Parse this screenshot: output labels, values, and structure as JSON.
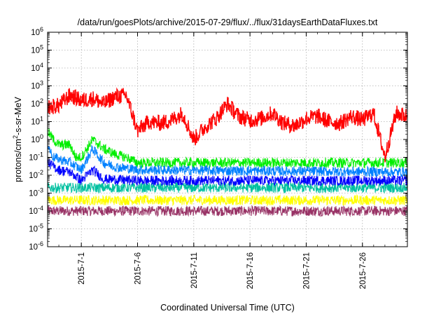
{
  "chart_data": {
    "type": "line",
    "title": "/data/run/goesPlots/archive/2015-07-29/flux/../flux/31daysEarthDataFluxes.txt",
    "xlabel": "Coordinated Universal Time (UTC)",
    "ylabel": {
      "base": "protons/cm",
      "sup": "2",
      "rest": "-s-sr-MeV"
    },
    "yscale": "log",
    "ylim": [
      1e-06,
      1000000.0
    ],
    "xlim": [
      "2015-06-28",
      "2015-07-29 23:59"
    ],
    "grid": true,
    "legend": "none",
    "x_ticks": [
      "2015-7-1",
      "2015-7-6",
      "2015-7-11",
      "2015-7-16",
      "2015-7-21",
      "2015-7-26"
    ],
    "y_ticks": [
      {
        "base": "10",
        "exp": "-6"
      },
      {
        "base": "10",
        "exp": "-5"
      },
      {
        "base": "10",
        "exp": "-4"
      },
      {
        "base": "10",
        "exp": "-3"
      },
      {
        "base": "10",
        "exp": "-2"
      },
      {
        "base": "10",
        "exp": "-1"
      },
      {
        "base": "10",
        "exp": "0"
      },
      {
        "base": "10",
        "exp": "1"
      },
      {
        "base": "10",
        "exp": "2"
      },
      {
        "base": "10",
        "exp": "3"
      },
      {
        "base": "10",
        "exp": "4"
      },
      {
        "base": "10",
        "exp": "5"
      },
      {
        "base": "10",
        "exp": "6"
      }
    ],
    "series": [
      {
        "color": "#ff0000",
        "x": [
          "2015-06-28",
          "2015-06-29",
          "2015-06-30",
          "2015-07-01",
          "2015-07-02",
          "2015-07-03",
          "2015-07-04",
          "2015-07-05",
          "2015-07-06",
          "2015-07-07",
          "2015-07-08",
          "2015-07-09",
          "2015-07-10",
          "2015-07-11",
          "2015-07-12",
          "2015-07-13",
          "2015-07-14",
          "2015-07-15",
          "2015-07-16",
          "2015-07-17",
          "2015-07-18",
          "2015-07-19",
          "2015-07-20",
          "2015-07-21",
          "2015-07-22",
          "2015-07-23",
          "2015-07-24",
          "2015-07-25",
          "2015-07-26",
          "2015-07-27",
          "2015-07-28",
          "2015-07-29",
          "2015-07-29 23:00"
        ],
        "y": [
          60,
          80,
          300,
          150,
          200,
          100,
          250,
          300,
          3,
          10,
          8,
          12,
          30,
          1,
          5,
          15,
          100,
          20,
          12,
          15,
          30,
          8,
          6,
          15,
          20,
          10,
          8,
          20,
          12,
          30,
          0.1,
          30,
          20
        ]
      },
      {
        "color": "#00ee00",
        "x": [
          "2015-06-28",
          "2015-06-28 12:00",
          "2015-06-29",
          "2015-06-30",
          "2015-06-30 12:00",
          "2015-07-01",
          "2015-07-02",
          "2015-07-03",
          "2015-07-04",
          "2015-07-05",
          "2015-07-06",
          "2015-07-10",
          "2015-07-15",
          "2015-07-20",
          "2015-07-25",
          "2015-07-29 23:00"
        ],
        "y": [
          3,
          1,
          0.5,
          0.5,
          0.1,
          0.1,
          1,
          0.3,
          0.15,
          0.1,
          0.05,
          0.05,
          0.05,
          0.05,
          0.05,
          0.05
        ]
      },
      {
        "color": "#0080ff",
        "x": [
          "2015-06-28",
          "2015-06-28 12:00",
          "2015-06-29",
          "2015-06-30",
          "2015-07-01",
          "2015-07-02",
          "2015-07-03",
          "2015-07-04",
          "2015-07-06",
          "2015-07-29 23:00"
        ],
        "y": [
          0.5,
          0.1,
          0.08,
          0.05,
          0.02,
          0.3,
          0.05,
          0.03,
          0.02,
          0.015
        ]
      },
      {
        "color": "#0000ff",
        "x": [
          "2015-06-28",
          "2015-06-29",
          "2015-06-30",
          "2015-07-01",
          "2015-07-02",
          "2015-07-03",
          "2015-07-06",
          "2015-07-29 23:00"
        ],
        "y": [
          0.05,
          0.02,
          0.015,
          0.005,
          0.02,
          0.006,
          0.005,
          0.005
        ]
      },
      {
        "color": "#00c0a0",
        "x": [
          "2015-06-28",
          "2015-07-29 23:00"
        ],
        "y": [
          0.002,
          0.002
        ]
      },
      {
        "color": "#ffff00",
        "x": [
          "2015-06-28",
          "2015-07-29 23:00"
        ],
        "y": [
          0.0004,
          0.0004
        ]
      },
      {
        "color": "#993366",
        "x": [
          "2015-06-28",
          "2015-07-29 23:00"
        ],
        "y": [
          0.0001,
          0.0001
        ]
      }
    ]
  }
}
